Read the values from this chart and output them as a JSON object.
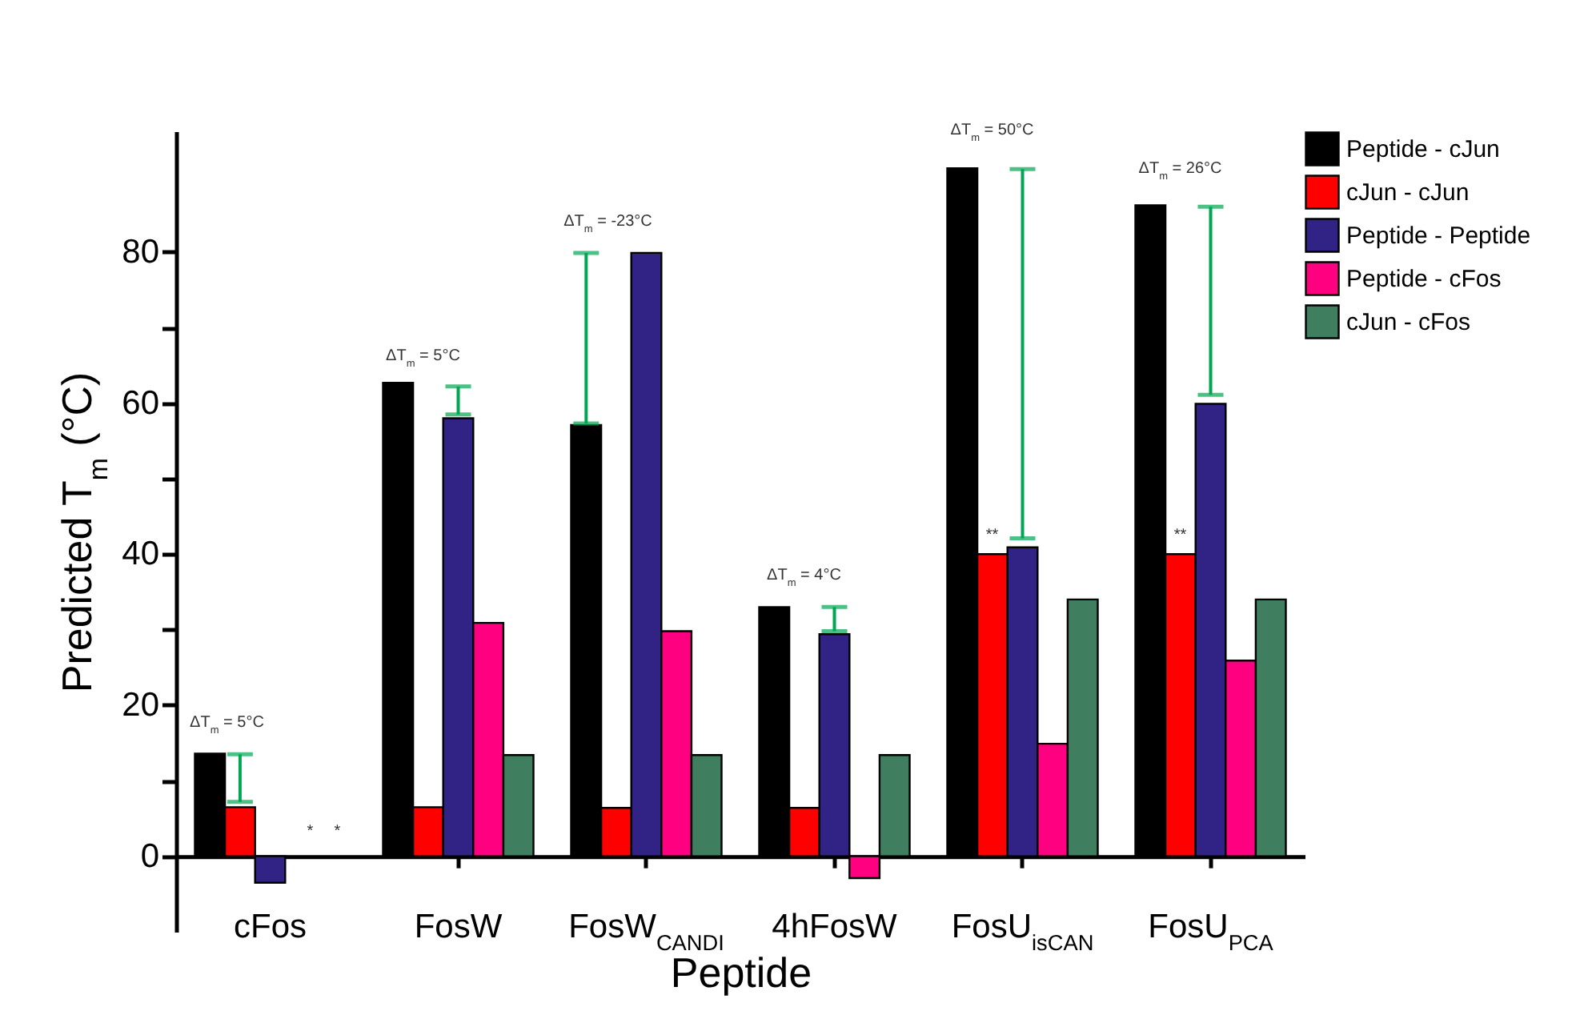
{
  "chart_data": {
    "type": "bar",
    "xlabel": "Peptide",
    "ylabel": "Predicted T$_{m}$ (°C)",
    "categories": [
      "cFos",
      "FosW",
      "FosW$_{CANDI}$",
      "4hFosW",
      "FosU$_{isCAN}$",
      "FosU$_{PCA}$"
    ],
    "series": [
      {
        "name": "Peptide - cJun",
        "color": "#000000",
        "values": [
          13.6,
          62.7,
          57.1,
          33.0,
          91.1,
          86.2
        ],
        "errors": [
          null,
          null,
          [
            57.3,
            79.9
          ],
          null,
          null,
          null
        ]
      },
      {
        "name": "cJun - cJun",
        "color": "#ff0000",
        "values": [
          6.5,
          6.5,
          6.4,
          6.4,
          40.0,
          40.0
        ],
        "errors": [
          [
            7.2,
            13.5
          ],
          null,
          null,
          null,
          null,
          null
        ]
      },
      {
        "name": "Peptide - Peptide",
        "color": "#312385",
        "values": [
          -3.5,
          58.0,
          79.9,
          29.4,
          40.9,
          59.9
        ],
        "errors": [
          null,
          [
            58.5,
            62.2
          ],
          null,
          [
            29.8,
            33.0
          ],
          [
            42.1,
            91.0
          ],
          [
            61.1,
            86.0
          ]
        ]
      },
      {
        "name": "Peptide - cFos",
        "color": "#ff0080",
        "values": [
          null,
          30.9,
          29.8,
          -2.9,
          14.9,
          25.9
        ]
      },
      {
        "name": "cJun - cFos",
        "color": "#3f7f5f",
        "values": [
          null,
          13.4,
          13.4,
          13.4,
          34.0,
          34.0
        ]
      }
    ],
    "ylim": [
      -10,
      96
    ],
    "yticks": [
      0,
      {
        "value": 10,
        "label": null
      },
      20,
      {
        "value": 30,
        "label": null
      },
      40,
      {
        "value": 50,
        "label": null
      },
      60,
      {
        "value": 70,
        "label": null
      },
      80
    ],
    "annotations": [
      "ΔT$_{m}$ = 5°C",
      "ΔT$_{m}$ = 5°C",
      "ΔT$_{m}$ = -23°C",
      "ΔT$_{m}$ = 4°C",
      "ΔT$_{m}$ = 50°C",
      "ΔT$_{m}$ = 26°C",
      "**",
      "**",
      "*",
      "*"
    ],
    "grid": false,
    "legend": "top right"
  }
}
